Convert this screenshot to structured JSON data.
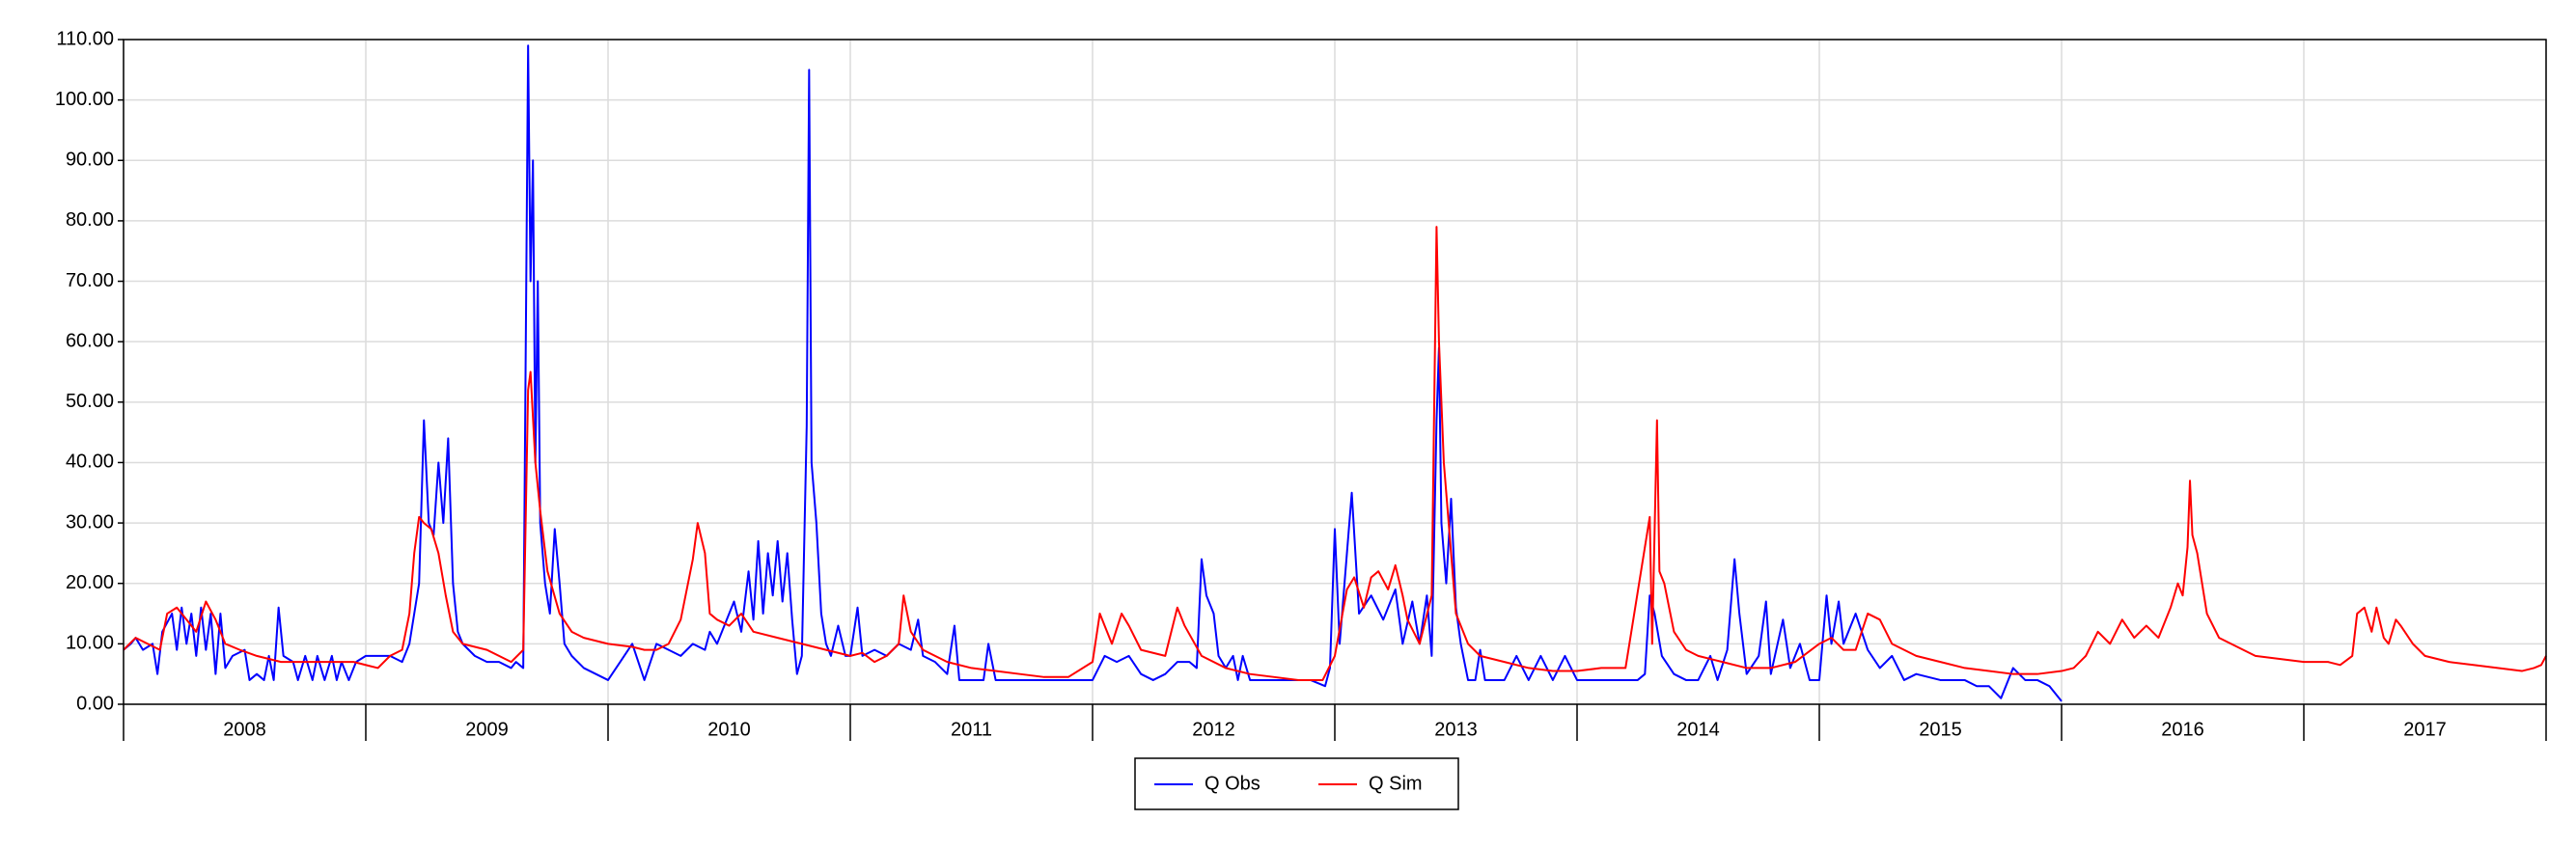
{
  "chart_data": {
    "type": "line",
    "categories": [
      "2008",
      "2009",
      "2010",
      "2011",
      "2012",
      "2013",
      "2014",
      "2015",
      "2016",
      "2017"
    ],
    "xlim": [
      2008,
      2018
    ],
    "xticks": [
      2008,
      2009,
      2010,
      2011,
      2012,
      2013,
      2014,
      2015,
      2016,
      2017,
      2018
    ],
    "ylim": [
      0,
      110
    ],
    "yticks": [
      {
        "value": 0,
        "label": "0.00"
      },
      {
        "value": 10,
        "label": "10.00"
      },
      {
        "value": 20,
        "label": "20.00"
      },
      {
        "value": 30,
        "label": "30.00"
      },
      {
        "value": 40,
        "label": "40.00"
      },
      {
        "value": 50,
        "label": "50.00"
      },
      {
        "value": 60,
        "label": "60.00"
      },
      {
        "value": 70,
        "label": "70.00"
      },
      {
        "value": 80,
        "label": "80.00"
      },
      {
        "value": 90,
        "label": "90.00"
      },
      {
        "value": 100,
        "label": "100.00"
      },
      {
        "value": 110,
        "label": "110.00"
      }
    ],
    "grid": true,
    "legend": "bottom",
    "series": [
      {
        "name": "Q Obs",
        "color": "#0000ff",
        "x": [
          2008.0,
          2008.03,
          2008.05,
          2008.08,
          2008.12,
          2008.14,
          2008.16,
          2008.2,
          2008.22,
          2008.24,
          2008.26,
          2008.28,
          2008.3,
          2008.32,
          2008.34,
          2008.36,
          2008.38,
          2008.4,
          2008.42,
          2008.45,
          2008.5,
          2008.52,
          2008.55,
          2008.58,
          2008.6,
          2008.62,
          2008.64,
          2008.66,
          2008.7,
          2008.72,
          2008.75,
          2008.78,
          2008.8,
          2008.83,
          2008.86,
          2008.88,
          2008.9,
          2008.93,
          2008.96,
          2009.0,
          2009.1,
          2009.15,
          2009.18,
          2009.22,
          2009.24,
          2009.26,
          2009.28,
          2009.3,
          2009.32,
          2009.34,
          2009.36,
          2009.38,
          2009.4,
          2009.45,
          2009.5,
          2009.55,
          2009.6,
          2009.62,
          2009.65,
          2009.67,
          2009.68,
          2009.69,
          2009.7,
          2009.71,
          2009.72,
          2009.74,
          2009.76,
          2009.78,
          2009.8,
          2009.82,
          2009.85,
          2009.9,
          2009.95,
          2010.0,
          2010.05,
          2010.1,
          2010.15,
          2010.2,
          2010.25,
          2010.3,
          2010.35,
          2010.4,
          2010.42,
          2010.45,
          2010.5,
          2010.52,
          2010.55,
          2010.58,
          2010.6,
          2010.62,
          2010.64,
          2010.66,
          2010.68,
          2010.7,
          2010.72,
          2010.74,
          2010.76,
          2010.78,
          2010.8,
          2010.82,
          2010.83,
          2010.84,
          2010.86,
          2010.88,
          2010.9,
          2010.92,
          2010.95,
          2010.98,
          2011.0,
          2011.03,
          2011.05,
          2011.1,
          2011.15,
          2011.2,
          2011.25,
          2011.28,
          2011.3,
          2011.35,
          2011.4,
          2011.43,
          2011.45,
          2011.5,
          2011.55,
          2011.57,
          2011.6,
          2011.7,
          2011.8,
          2011.9,
          2012.0,
          2012.05,
          2012.1,
          2012.15,
          2012.2,
          2012.25,
          2012.3,
          2012.35,
          2012.4,
          2012.43,
          2012.45,
          2012.47,
          2012.5,
          2012.52,
          2012.55,
          2012.58,
          2012.6,
          2012.62,
          2012.65,
          2012.7,
          2012.8,
          2012.9,
          2012.96,
          2012.98,
          2013.0,
          2013.02,
          2013.05,
          2013.07,
          2013.1,
          2013.15,
          2013.2,
          2013.25,
          2013.28,
          2013.32,
          2013.35,
          2013.38,
          2013.4,
          2013.42,
          2013.43,
          2013.44,
          2013.46,
          2013.48,
          2013.5,
          2013.52,
          2013.55,
          2013.58,
          2013.6,
          2013.62,
          2013.7,
          2013.75,
          2013.8,
          2013.85,
          2013.9,
          2013.95,
          2014.0,
          2014.05,
          2014.1,
          2014.15,
          2014.2,
          2014.25,
          2014.28,
          2014.3,
          2014.32,
          2014.35,
          2014.4,
          2014.45,
          2014.5,
          2014.55,
          2014.58,
          2014.62,
          2014.65,
          2014.67,
          2014.7,
          2014.75,
          2014.78,
          2014.8,
          2014.85,
          2014.88,
          2014.92,
          2014.96,
          2015.0,
          2015.03,
          2015.05,
          2015.08,
          2015.1,
          2015.15,
          2015.2,
          2015.25,
          2015.3,
          2015.35,
          2015.4,
          2015.5,
          2015.6,
          2015.65,
          2015.7,
          2015.75,
          2015.8,
          2015.85,
          2015.9,
          2015.95,
          2016.0
        ],
        "values": [
          9,
          10,
          11,
          9,
          10,
          5,
          12,
          15,
          9,
          16,
          10,
          15,
          8,
          16,
          9,
          15,
          5,
          15,
          6,
          8,
          9,
          4,
          5,
          4,
          8,
          4,
          16,
          8,
          7,
          4,
          8,
          4,
          8,
          4,
          8,
          4,
          7,
          4,
          7,
          8,
          8,
          7,
          10,
          20,
          47,
          30,
          28,
          40,
          30,
          44,
          20,
          12,
          10,
          8,
          7,
          7,
          6,
          7,
          6,
          109,
          70,
          90,
          40,
          70,
          30,
          20,
          15,
          29,
          20,
          10,
          8,
          6,
          5,
          4,
          7,
          10,
          4,
          10,
          9,
          8,
          10,
          9,
          12,
          10,
          15,
          17,
          12,
          22,
          14,
          27,
          15,
          25,
          18,
          27,
          17,
          25,
          14,
          5,
          8,
          46,
          105,
          40,
          30,
          15,
          10,
          8,
          13,
          8,
          8,
          16,
          8,
          9,
          8,
          10,
          9,
          14,
          8,
          7,
          5,
          13,
          4,
          4,
          4,
          10,
          4,
          4,
          4,
          4,
          4,
          8,
          7,
          8,
          5,
          4,
          5,
          7,
          7,
          6,
          24,
          18,
          15,
          8,
          6,
          8,
          4,
          8,
          4,
          4,
          4,
          4,
          3,
          6,
          29,
          10,
          25,
          35,
          15,
          18,
          14,
          19,
          10,
          17,
          10,
          18,
          8,
          47,
          59,
          30,
          20,
          34,
          16,
          10,
          4,
          4,
          9,
          4,
          4,
          8,
          4,
          8,
          4,
          8,
          4,
          4,
          4,
          4,
          4,
          4,
          5,
          18,
          15,
          8,
          5,
          4,
          4,
          8,
          4,
          9,
          24,
          15,
          5,
          8,
          17,
          5,
          14,
          6,
          10,
          4,
          4,
          18,
          10,
          17,
          10,
          15,
          9,
          6,
          8,
          4,
          5,
          4,
          4,
          3,
          3,
          1,
          6,
          4,
          4,
          3,
          0.5
        ]
      },
      {
        "name": "Q Sim",
        "color": "#ff0000",
        "x": [
          2008.0,
          2008.05,
          2008.1,
          2008.15,
          2008.18,
          2008.22,
          2008.26,
          2008.3,
          2008.34,
          2008.38,
          2008.42,
          2008.48,
          2008.55,
          2008.65,
          2008.75,
          2008.85,
          2008.95,
          2009.05,
          2009.1,
          2009.15,
          2009.18,
          2009.2,
          2009.22,
          2009.24,
          2009.27,
          2009.3,
          2009.33,
          2009.36,
          2009.4,
          2009.5,
          2009.6,
          2009.65,
          2009.67,
          2009.68,
          2009.7,
          2009.72,
          2009.75,
          2009.8,
          2009.85,
          2009.9,
          2010.0,
          2010.1,
          2010.15,
          2010.2,
          2010.25,
          2010.3,
          2010.35,
          2010.37,
          2010.4,
          2010.42,
          2010.45,
          2010.5,
          2010.55,
          2010.6,
          2010.7,
          2010.8,
          2010.9,
          2011.0,
          2011.05,
          2011.1,
          2011.15,
          2011.2,
          2011.22,
          2011.25,
          2011.3,
          2011.4,
          2011.5,
          2011.6,
          2011.7,
          2011.8,
          2011.9,
          2012.0,
          2012.03,
          2012.05,
          2012.08,
          2012.12,
          2012.15,
          2012.2,
          2012.3,
          2012.35,
          2012.38,
          2012.45,
          2012.55,
          2012.65,
          2012.75,
          2012.85,
          2012.95,
          2013.0,
          2013.05,
          2013.08,
          2013.12,
          2013.15,
          2013.18,
          2013.22,
          2013.25,
          2013.28,
          2013.3,
          2013.35,
          2013.4,
          2013.42,
          2013.43,
          2013.45,
          2013.48,
          2013.5,
          2013.55,
          2013.6,
          2013.7,
          2013.8,
          2013.9,
          2014.0,
          2014.1,
          2014.2,
          2014.3,
          2014.31,
          2014.33,
          2014.34,
          2014.36,
          2014.4,
          2014.45,
          2014.5,
          2014.6,
          2014.7,
          2014.8,
          2014.9,
          2015.0,
          2015.05,
          2015.1,
          2015.15,
          2015.2,
          2015.25,
          2015.3,
          2015.4,
          2015.5,
          2015.6,
          2015.7,
          2015.8,
          2015.9,
          2016.0,
          2016.05,
          2016.1,
          2016.15,
          2016.2,
          2016.25,
          2016.3,
          2016.35,
          2016.4,
          2016.45,
          2016.48,
          2016.5,
          2016.52,
          2016.53,
          2016.54,
          2016.56,
          2016.6,
          2016.65,
          2016.7,
          2016.8,
          2016.9,
          2017.0,
          2017.05,
          2017.1,
          2017.15,
          2017.2,
          2017.22,
          2017.25,
          2017.28,
          2017.3,
          2017.33,
          2017.35,
          2017.38,
          2017.4,
          2017.45,
          2017.5,
          2017.6,
          2017.7,
          2017.8,
          2017.9,
          2017.95,
          2017.98,
          2018.0
        ],
        "values": [
          9,
          11,
          10,
          9,
          15,
          16,
          14,
          12,
          17,
          14,
          10,
          9,
          8,
          7,
          7,
          7,
          7,
          6,
          8,
          9,
          15,
          25,
          31,
          30,
          29,
          25,
          18,
          12,
          10,
          9,
          7,
          9,
          52,
          55,
          40,
          32,
          22,
          15,
          12,
          11,
          10,
          9.5,
          9,
          9,
          10,
          14,
          24,
          30,
          25,
          15,
          14,
          13,
          15,
          12,
          11,
          10,
          9,
          8,
          8.5,
          7,
          8,
          10,
          18,
          12,
          9,
          7,
          6,
          5.5,
          5,
          4.5,
          4.5,
          7,
          15,
          13,
          10,
          15,
          13,
          9,
          8,
          16,
          13,
          8,
          6,
          5,
          4.5,
          4,
          4,
          8,
          19,
          21,
          16,
          21,
          22,
          19,
          23,
          18,
          14,
          10,
          18,
          79,
          60,
          40,
          25,
          15,
          10,
          8,
          7,
          6,
          5.5,
          5.5,
          6,
          6,
          31,
          10,
          47,
          22,
          20,
          12,
          9,
          8,
          7,
          6,
          6,
          7,
          10,
          11,
          9,
          9,
          15,
          14,
          10,
          8,
          7,
          6,
          5.5,
          5,
          5,
          5.5,
          6,
          8,
          12,
          10,
          14,
          11,
          13,
          11,
          16,
          20,
          18,
          26,
          37,
          28,
          25,
          15,
          11,
          10,
          8,
          7.5,
          7,
          7,
          7,
          6.5,
          8,
          15,
          16,
          12,
          16,
          11,
          10,
          14,
          13,
          10,
          8,
          7,
          6.5,
          6,
          5.5,
          6,
          6.5,
          8
        ]
      }
    ]
  }
}
